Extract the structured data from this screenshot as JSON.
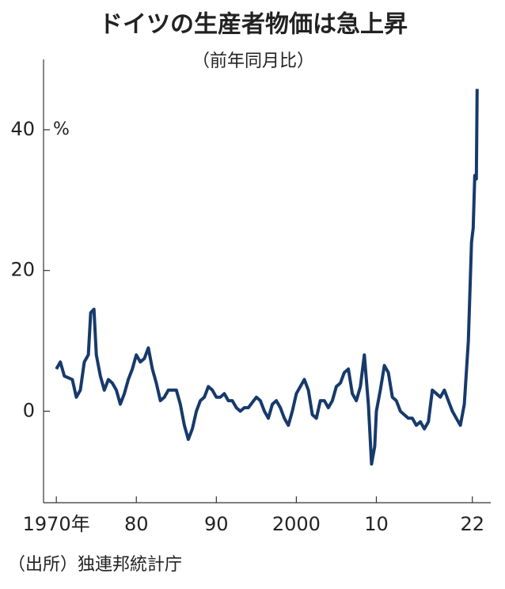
{
  "chart_data": {
    "type": "line",
    "title": "ドイツの生産者物価は急上昇",
    "subtitle": "（前年同月比）",
    "source": "（出所）独連邦統計庁",
    "unit": "%",
    "xlim": [
      1968.4,
      2024.3
    ],
    "ylim": [
      -13,
      50
    ],
    "xticks": [
      {
        "value": 1970,
        "label": "1970年"
      },
      {
        "value": 1980,
        "label": "80"
      },
      {
        "value": 1990,
        "label": "90"
      },
      2000,
      {
        "value": 2010,
        "label": "10"
      },
      {
        "value": 2022,
        "label": "22"
      }
    ],
    "yticks": [
      0,
      20,
      40
    ],
    "series": [
      {
        "color": "#173a6b",
        "x": [
          1970,
          1970.5,
          1971,
          1972,
          1972.5,
          1973,
          1973.5,
          1974,
          1974.3,
          1974.7,
          1975,
          1975.5,
          1976,
          1976.5,
          1977,
          1977.5,
          1978,
          1978.5,
          1979,
          1979.5,
          1980,
          1980.5,
          1981,
          1981.5,
          1982,
          1982.5,
          1983,
          1983.5,
          1984,
          1985,
          1985.5,
          1986,
          1986.5,
          1987,
          1987.5,
          1988,
          1988.5,
          1989,
          1989.5,
          1990,
          1990.5,
          1991,
          1991.5,
          1992,
          1992.5,
          1993,
          1993.5,
          1994,
          1995,
          1995.5,
          1996,
          1996.5,
          1997,
          1997.5,
          1998,
          1998.5,
          1999,
          1999.5,
          2000,
          2000.5,
          2001,
          2001.5,
          2002,
          2002.5,
          2003,
          2003.5,
          2004,
          2004.5,
          2005,
          2005.5,
          2006,
          2006.5,
          2007,
          2007.5,
          2008,
          2008.5,
          2009,
          2009.4,
          2009.8,
          2010,
          2010.5,
          2011,
          2011.5,
          2012,
          2012.5,
          2013,
          2013.5,
          2014,
          2014.5,
          2015,
          2015.5,
          2016,
          2016.5,
          2017,
          2017.5,
          2018,
          2018.5,
          2019,
          2019.5,
          2020,
          2020.5,
          2021,
          2021.5,
          2021.9,
          2022.1,
          2022.3,
          2022.5,
          2022.6
        ],
        "values": [
          6,
          7,
          5,
          4.5,
          2,
          3,
          7,
          8,
          14,
          14.5,
          8,
          5,
          3,
          4.5,
          4,
          3,
          1,
          2.5,
          4.5,
          6,
          8,
          7,
          7.5,
          9,
          6,
          4,
          1.5,
          2,
          3,
          3,
          1,
          -2,
          -4,
          -2.5,
          0,
          1.5,
          2,
          3.5,
          3,
          2,
          2,
          2.5,
          1.5,
          1.5,
          0.5,
          0,
          0.5,
          0.5,
          2,
          1.5,
          0,
          -1,
          1,
          1.5,
          0.5,
          -1,
          -2,
          0,
          2.5,
          3.5,
          4.5,
          3,
          -0.5,
          -1,
          1.5,
          1.5,
          0.5,
          1.5,
          3.5,
          4,
          5.5,
          6,
          2.5,
          1.5,
          3.5,
          8,
          1,
          -7.5,
          -5,
          0,
          3,
          6.5,
          5.5,
          2,
          1.5,
          0,
          -0.5,
          -1,
          -1,
          -2,
          -1.5,
          -2.5,
          -1.5,
          3,
          2.5,
          2,
          3,
          1.5,
          0,
          -1,
          -2,
          1,
          10,
          24,
          26,
          33.5,
          33,
          45.8
        ]
      }
    ]
  }
}
